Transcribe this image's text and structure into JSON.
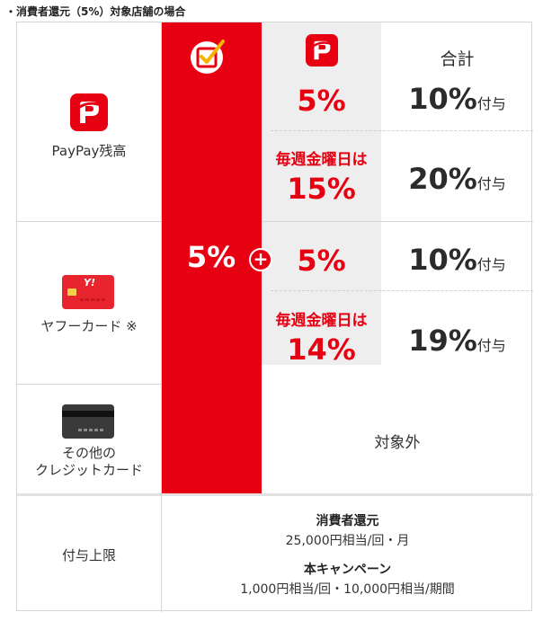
{
  "caption": "・消費者還元（5%）対象店舗の場合",
  "header": {
    "total_label": "合計"
  },
  "rows": {
    "paypay": {
      "label": "PayPay残高"
    },
    "yahoo_card": {
      "label": "ヤフーカード ※",
      "card_text": "Y!"
    },
    "other_card": {
      "label_line1": "その他の",
      "label_line2": "クレジットカード"
    },
    "limit": {
      "label": "付与上限"
    }
  },
  "red_column": {
    "value": "5%",
    "plus": "+"
  },
  "cells": {
    "paypay_normal": {
      "rate": "5%",
      "total": "10%",
      "suffix": "付与"
    },
    "paypay_friday": {
      "note": "毎週金曜日は",
      "rate": "15%",
      "total": "20%",
      "suffix": "付与"
    },
    "yahoo_normal": {
      "rate": "5%",
      "total": "10%",
      "suffix": "付与"
    },
    "yahoo_friday": {
      "note": "毎週金曜日は",
      "rate": "14%",
      "total": "19%",
      "suffix": "付与"
    },
    "other": {
      "text": "対象外"
    }
  },
  "limits": {
    "consumer_title": "消費者還元",
    "consumer_value": "25,000円相当/回・月",
    "campaign_title": "本キャンペーン",
    "campaign_value": "1,000円相当/回・10,000円相当/期間"
  },
  "colors": {
    "red": "#e60012",
    "gray": "#eeeeee",
    "border": "#d6d6d6"
  },
  "icons": [
    "paypay-logo-icon",
    "cashless-check-icon",
    "yahoo-card-icon",
    "credit-card-icon"
  ]
}
